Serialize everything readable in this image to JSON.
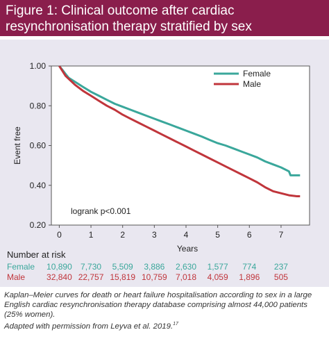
{
  "figure": {
    "title": "Figure 1: Clinical outcome after cardiac resynchronisation therapy stratified by sex",
    "caption": "Kaplan–Meier curves for death or heart failure hospitalisation according to sex in a large English cardiac resynchronisation therapy database comprising almost 44,000 patients (25% women).",
    "credit": "Adapted with permission from Leyva et al. 2019.",
    "credit_ref": "17"
  },
  "chart_data": {
    "type": "line",
    "xlabel": "Years",
    "ylabel": "Event free",
    "xlim": [
      -0.25,
      7.9
    ],
    "ylim": [
      0.2,
      1.0
    ],
    "xticks": [
      "0",
      "1",
      "2",
      "3",
      "4",
      "5",
      "6",
      "7"
    ],
    "yticks": [
      "0.20",
      "0.40",
      "0.60",
      "0.80",
      "1.00"
    ],
    "legend_position": "top-right",
    "annotation": "logrank p<0.001",
    "series": [
      {
        "name": "Female",
        "color": "#3aa79b",
        "x": [
          0,
          0.1,
          0.2,
          0.3,
          0.5,
          0.75,
          1.0,
          1.25,
          1.5,
          1.75,
          2.0,
          2.25,
          2.5,
          2.75,
          3.0,
          3.25,
          3.5,
          3.75,
          4.0,
          4.25,
          4.5,
          4.75,
          5.0,
          5.25,
          5.5,
          5.75,
          6.0,
          6.25,
          6.5,
          6.75,
          7.0,
          7.25,
          7.3,
          7.6
        ],
        "y": [
          1.0,
          0.98,
          0.96,
          0.94,
          0.92,
          0.895,
          0.87,
          0.85,
          0.83,
          0.81,
          0.795,
          0.78,
          0.765,
          0.75,
          0.735,
          0.72,
          0.705,
          0.69,
          0.675,
          0.66,
          0.645,
          0.628,
          0.612,
          0.6,
          0.585,
          0.57,
          0.555,
          0.54,
          0.52,
          0.505,
          0.49,
          0.47,
          0.45,
          0.45
        ]
      },
      {
        "name": "Male",
        "color": "#c0353b",
        "x": [
          0,
          0.1,
          0.2,
          0.3,
          0.5,
          0.75,
          1.0,
          1.25,
          1.5,
          1.75,
          2.0,
          2.25,
          2.5,
          2.75,
          3.0,
          3.25,
          3.5,
          3.75,
          4.0,
          4.25,
          4.5,
          4.75,
          5.0,
          5.25,
          5.5,
          5.75,
          6.0,
          6.25,
          6.5,
          6.75,
          7.0,
          7.25,
          7.5,
          7.6
        ],
        "y": [
          1.0,
          0.975,
          0.95,
          0.935,
          0.905,
          0.875,
          0.85,
          0.825,
          0.8,
          0.78,
          0.755,
          0.735,
          0.715,
          0.695,
          0.675,
          0.655,
          0.635,
          0.615,
          0.595,
          0.575,
          0.555,
          0.535,
          0.515,
          0.495,
          0.475,
          0.455,
          0.435,
          0.415,
          0.39,
          0.37,
          0.36,
          0.35,
          0.345,
          0.345
        ]
      }
    ],
    "risk_table": {
      "title": "Number at risk",
      "rows": [
        {
          "label": "Female",
          "color": "#3aa79b",
          "values": [
            "10,890",
            "7,730",
            "5,509",
            "3,886",
            "2,630",
            "1,577",
            "774",
            "237"
          ]
        },
        {
          "label": "Male",
          "color": "#c0353b",
          "values": [
            "32,840",
            "22,757",
            "15,819",
            "10,759",
            "7,018",
            "4,059",
            "1,896",
            "505"
          ]
        }
      ]
    }
  }
}
